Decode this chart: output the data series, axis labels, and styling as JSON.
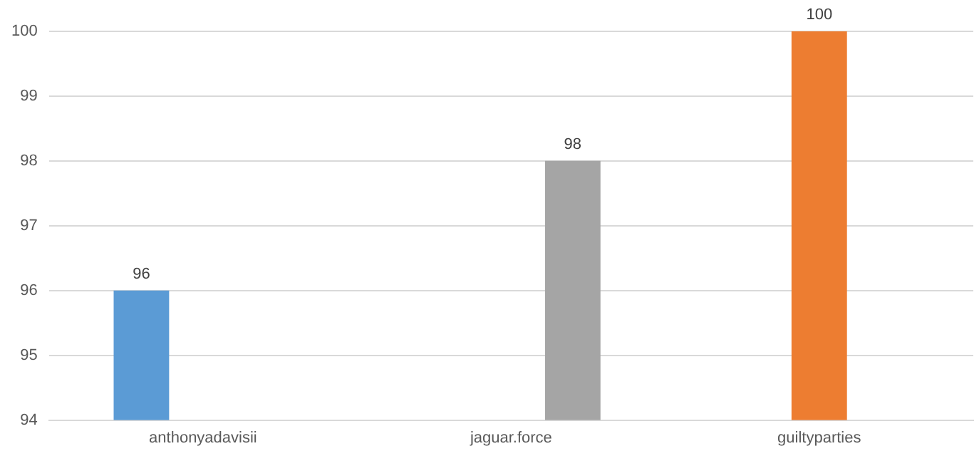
{
  "chart_data": {
    "type": "bar",
    "categories": [
      "anthonyadavisii",
      "jaguar.force",
      "guiltyparties"
    ],
    "series": [
      {
        "color": "#5b9bd5",
        "values": [
          96,
          null,
          null
        ]
      },
      {
        "color": "#ed7d31",
        "values": [
          null,
          null,
          100
        ]
      },
      {
        "color": "#a5a5a5",
        "values": [
          null,
          98,
          null
        ]
      }
    ],
    "ylim": [
      94,
      100
    ],
    "yticks": [
      94,
      95,
      96,
      97,
      98,
      99,
      100
    ],
    "grid": "y",
    "legend": false,
    "data_labels": true
  }
}
